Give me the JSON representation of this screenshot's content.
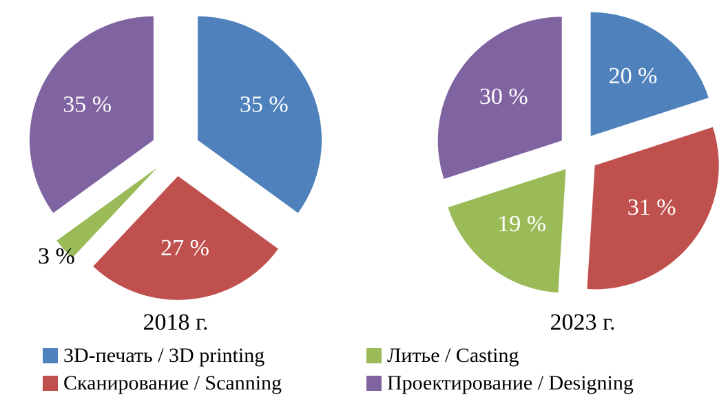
{
  "chart_data": [
    {
      "type": "pie",
      "title": "2018 г.",
      "labels": [
        "3D-печать / 3D printing",
        "Сканирование / Scanning",
        "Литье / Casting",
        "Проектирование / Designing"
      ],
      "values": [
        35,
        27,
        3,
        35
      ],
      "value_labels": [
        "35 %",
        "27 %",
        "3 %",
        "35 %"
      ],
      "colors": [
        "#4f81bd",
        "#c0504d",
        "#9bbb59",
        "#8064a2"
      ],
      "exploded": true
    },
    {
      "type": "pie",
      "title": "2023 г.",
      "labels": [
        "3D-печать / 3D printing",
        "Сканирование / Scanning",
        "Литье / Casting",
        "Проектирование / Designing"
      ],
      "values": [
        20,
        31,
        19,
        30
      ],
      "value_labels": [
        "20 %",
        "31 %",
        "19 %",
        "30 %"
      ],
      "colors": [
        "#4f81bd",
        "#c0504d",
        "#9bbb59",
        "#8064a2"
      ],
      "exploded": true
    }
  ],
  "legend": {
    "placement": "bottom",
    "items": [
      {
        "label": "3D-печать / 3D printing",
        "color": "#4f81bd"
      },
      {
        "label": "Литье / Casting",
        "color": "#9bbb59"
      },
      {
        "label": "Сканирование / Scanning",
        "color": "#c0504d"
      },
      {
        "label": "Проектирование / Designing",
        "color": "#8064a2"
      }
    ]
  }
}
